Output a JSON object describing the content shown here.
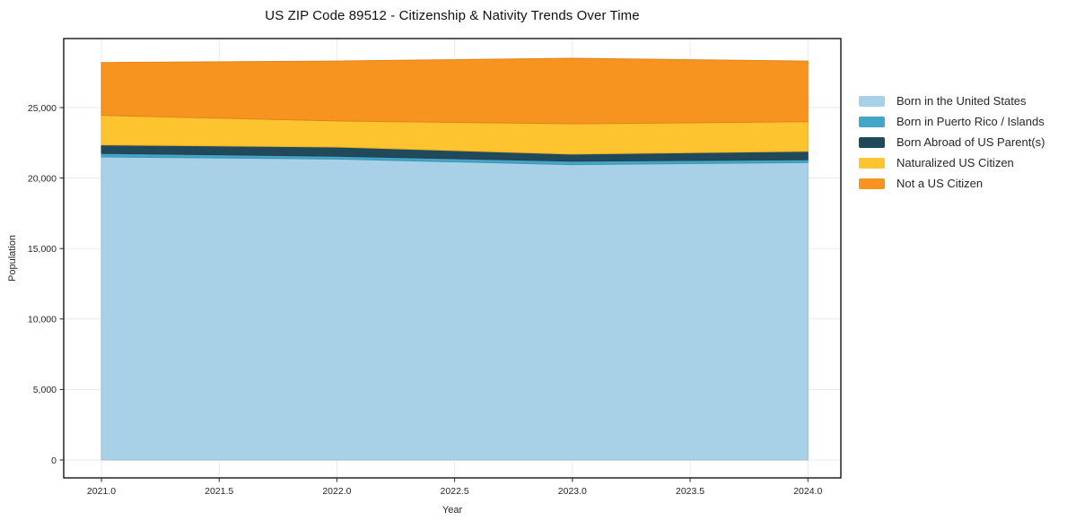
{
  "chart_data": {
    "type": "area",
    "stacked": true,
    "title": "US ZIP Code 89512 - Citizenship & Nativity Trends Over Time",
    "xlabel": "Year",
    "ylabel": "Population",
    "x": [
      2021,
      2022,
      2023,
      2024
    ],
    "series": [
      {
        "name": "Born in the United States",
        "color": "#a8d1e7",
        "values": [
          21500,
          21350,
          20950,
          21100
        ]
      },
      {
        "name": "Born in Puerto Rico / Islands",
        "color": "#45a5c6",
        "values": [
          250,
          200,
          250,
          200
        ]
      },
      {
        "name": "Born Abroad of US Parent(s)",
        "color": "#21495c",
        "values": [
          600,
          650,
          500,
          600
        ]
      },
      {
        "name": "Naturalized US Citizen",
        "color": "#fdc42f",
        "values": [
          2100,
          1850,
          2150,
          2100
        ]
      },
      {
        "name": "Not a US Citizen",
        "color": "#f7941f",
        "values": [
          3750,
          4250,
          4650,
          4300
        ]
      }
    ],
    "stacked_totals": [
      28200,
      28300,
      28500,
      28300
    ],
    "xlim": [
      2020.84,
      2024.14
    ],
    "ylim": [
      -1272,
      29898
    ],
    "xticks": [
      2021.0,
      2021.5,
      2022.0,
      2022.5,
      2023.0,
      2023.5,
      2024.0
    ],
    "xtick_labels": [
      "2021.0",
      "2021.5",
      "2022.0",
      "2022.5",
      "2023.0",
      "2023.5",
      "2024.0"
    ],
    "yticks": [
      0,
      5000,
      10000,
      15000,
      20000,
      25000
    ],
    "ytick_labels": [
      "0",
      "5,000",
      "10,000",
      "15,000",
      "20,000",
      "25,000"
    ],
    "grid": true,
    "grid_color": "#e8e8e8",
    "spine_color": "#000000",
    "background": "#ffffff",
    "legend_position": "right-outside"
  }
}
